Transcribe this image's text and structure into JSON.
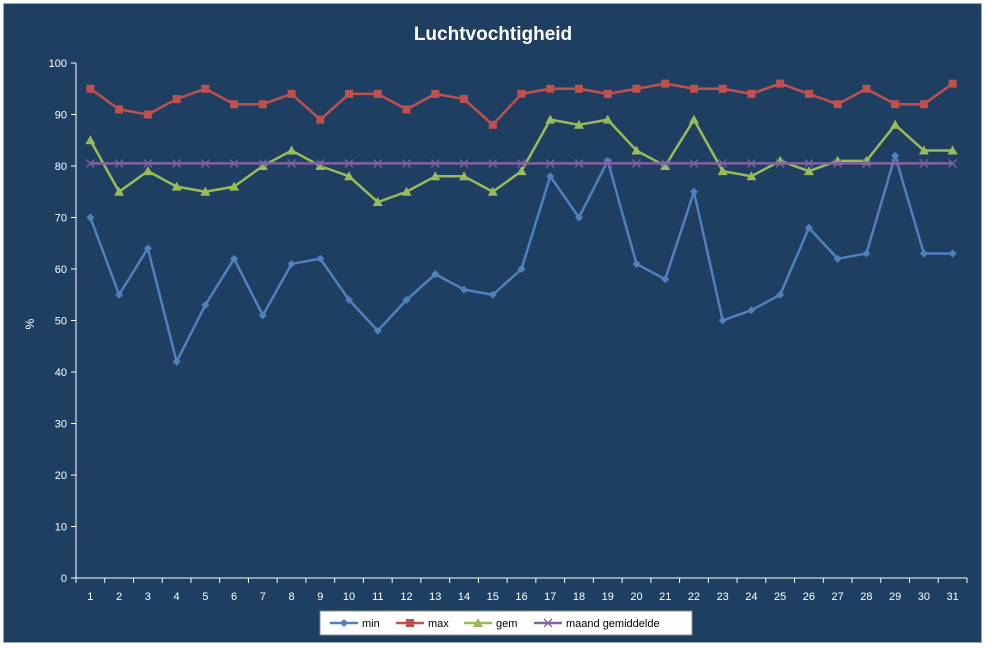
{
  "chart_data": {
    "type": "line",
    "title": "Luchtvochtigheid",
    "xlabel": "",
    "ylabel": "%",
    "ylim": [
      0,
      100
    ],
    "yticks": [
      0,
      10,
      20,
      30,
      40,
      50,
      60,
      70,
      80,
      90,
      100
    ],
    "categories": [
      "1",
      "2",
      "3",
      "4",
      "5",
      "6",
      "7",
      "8",
      "9",
      "10",
      "11",
      "12",
      "13",
      "14",
      "15",
      "16",
      "17",
      "18",
      "19",
      "20",
      "21",
      "22",
      "23",
      "24",
      "25",
      "26",
      "27",
      "28",
      "29",
      "30",
      "31"
    ],
    "grid": false,
    "legend_position": "bottom",
    "series": [
      {
        "name": "min",
        "color": "#4f81bd",
        "marker": "diamond",
        "values": [
          70,
          55,
          64,
          42,
          53,
          62,
          51,
          61,
          62,
          54,
          48,
          54,
          59,
          56,
          55,
          60,
          78,
          70,
          81,
          61,
          58,
          75,
          50,
          52,
          55,
          68,
          62,
          63,
          82,
          63,
          63
        ]
      },
      {
        "name": "max",
        "color": "#c0504d",
        "marker": "square",
        "values": [
          95,
          91,
          90,
          93,
          95,
          92,
          92,
          94,
          89,
          94,
          94,
          91,
          94,
          93,
          88,
          94,
          95,
          95,
          94,
          95,
          96,
          95,
          95,
          94,
          96,
          94,
          92,
          95,
          92,
          92,
          96
        ]
      },
      {
        "name": "gem",
        "color": "#9bbb59",
        "marker": "triangle",
        "values": [
          85,
          75,
          79,
          76,
          75,
          76,
          80,
          83,
          80,
          78,
          73,
          75,
          78,
          78,
          75,
          79,
          89,
          88,
          89,
          83,
          80,
          89,
          79,
          78,
          81,
          79,
          81,
          81,
          88,
          83,
          83
        ]
      },
      {
        "name": "maand gemiddelde",
        "color": "#8064a2",
        "marker": "x",
        "values": [
          80.5,
          80.5,
          80.5,
          80.5,
          80.5,
          80.5,
          80.5,
          80.5,
          80.5,
          80.5,
          80.5,
          80.5,
          80.5,
          80.5,
          80.5,
          80.5,
          80.5,
          80.5,
          80.5,
          80.5,
          80.5,
          80.5,
          80.5,
          80.5,
          80.5,
          80.5,
          80.5,
          80.5,
          80.5,
          80.5,
          80.5
        ]
      }
    ]
  }
}
